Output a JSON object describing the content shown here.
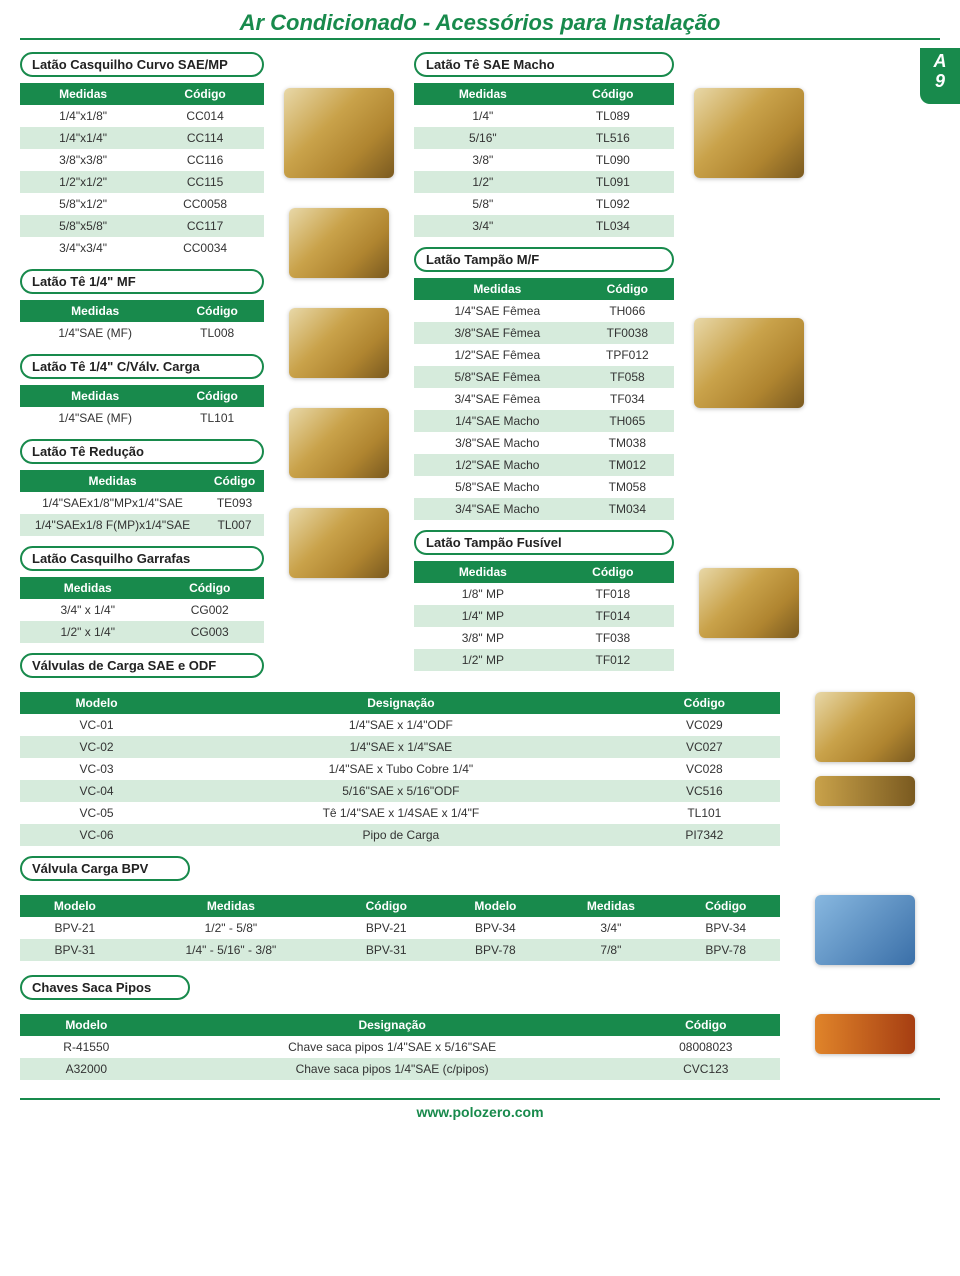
{
  "page": {
    "title": "Ar Condicionado - Acessórios para Instalação",
    "corner_top": "A",
    "corner_bottom": "9",
    "footer": "www.polozero.com"
  },
  "colors": {
    "brand": "#188a4c",
    "row_alt": "#d6ebdc",
    "text": "#333333",
    "bg": "#ffffff"
  },
  "headers": {
    "medidas": "Medidas",
    "codigo": "Código",
    "modelo": "Modelo",
    "designacao": "Designação"
  },
  "sections": {
    "casq_curvo": {
      "title": "Latão Casquilho Curvo SAE/MP",
      "rows": [
        [
          "1/4\"x1/8\"",
          "CC014"
        ],
        [
          "1/4\"x1/4\"",
          "CC114"
        ],
        [
          "3/8\"x3/8\"",
          "CC116"
        ],
        [
          "1/2\"x1/2\"",
          "CC115"
        ],
        [
          "5/8\"x1/2\"",
          "CC0058"
        ],
        [
          "5/8\"x5/8\"",
          "CC117"
        ],
        [
          "3/4\"x3/4\"",
          "CC0034"
        ]
      ]
    },
    "te_14_mf": {
      "title": "Latão Tê 1/4\" MF",
      "rows": [
        [
          "1/4\"SAE (MF)",
          "TL008"
        ]
      ]
    },
    "te_14_cvalv": {
      "title": "Latão Tê 1/4\" C/Válv. Carga",
      "rows": [
        [
          "1/4\"SAE (MF)",
          "TL101"
        ]
      ]
    },
    "te_reducao": {
      "title": "Latão Tê Redução",
      "rows": [
        [
          "1/4\"SAEx1/8\"MPx1/4\"SAE",
          "TE093"
        ],
        [
          "1/4\"SAEx1/8 F(MP)x1/4\"SAE",
          "TL007"
        ]
      ]
    },
    "casq_garrafas": {
      "title": "Latão Casquilho Garrafas",
      "rows": [
        [
          "3/4\" x 1/4\"",
          "CG002"
        ],
        [
          "1/2\" x 1/4\"",
          "CG003"
        ]
      ]
    },
    "te_sae_macho": {
      "title": "Latão Tê SAE Macho",
      "rows": [
        [
          "1/4\"",
          "TL089"
        ],
        [
          "5/16\"",
          "TL516"
        ],
        [
          "3/8\"",
          "TL090"
        ],
        [
          "1/2\"",
          "TL091"
        ],
        [
          "5/8\"",
          "TL092"
        ],
        [
          "3/4\"",
          "TL034"
        ]
      ]
    },
    "tampao_mf": {
      "title": "Latão Tampão M/F",
      "rows": [
        [
          "1/4\"SAE Fêmea",
          "TH066"
        ],
        [
          "3/8\"SAE Fêmea",
          "TF0038"
        ],
        [
          "1/2\"SAE Fêmea",
          "TPF012"
        ],
        [
          "5/8\"SAE Fêmea",
          "TF058"
        ],
        [
          "3/4\"SAE Fêmea",
          "TF034"
        ],
        [
          "1/4\"SAE Macho",
          "TH065"
        ],
        [
          "3/8\"SAE Macho",
          "TM038"
        ],
        [
          "1/2\"SAE Macho",
          "TM012"
        ],
        [
          "5/8\"SAE Macho",
          "TM058"
        ],
        [
          "3/4\"SAE Macho",
          "TM034"
        ]
      ]
    },
    "tampao_fusivel": {
      "title": "Latão Tampão Fusível",
      "rows": [
        [
          "1/8\" MP",
          "TF018"
        ],
        [
          "1/4\" MP",
          "TF014"
        ],
        [
          "3/8\" MP",
          "TF038"
        ],
        [
          "1/2\" MP",
          "TF012"
        ]
      ]
    },
    "valv_carga_sae_odf": {
      "title": "Válvulas de Carga SAE e ODF",
      "columns": [
        "Modelo",
        "Designação",
        "Código"
      ],
      "rows": [
        [
          "VC-01",
          "1/4\"SAE x 1/4\"ODF",
          "VC029"
        ],
        [
          "VC-02",
          "1/4\"SAE x 1/4\"SAE",
          "VC027"
        ],
        [
          "VC-03",
          "1/4\"SAE x Tubo Cobre 1/4\"",
          "VC028"
        ],
        [
          "VC-04",
          "5/16\"SAE x 5/16\"ODF",
          "VC516"
        ],
        [
          "VC-05",
          "Tê 1/4\"SAE x 1/4SAE x 1/4\"F",
          "TL101"
        ],
        [
          "VC-06",
          "Pipo de Carga",
          "PI7342"
        ]
      ]
    },
    "valv_carga_bpv": {
      "title": "Válvula Carga BPV",
      "columns": [
        "Modelo",
        "Medidas",
        "Código",
        "Modelo",
        "Medidas",
        "Código"
      ],
      "rows": [
        [
          "BPV-21",
          "1/2\" - 5/8\"",
          "BPV-21",
          "BPV-34",
          "3/4\"",
          "BPV-34"
        ],
        [
          "BPV-31",
          "1/4\" - 5/16\" - 3/8\"",
          "BPV-31",
          "BPV-78",
          "7/8\"",
          "BPV-78"
        ]
      ]
    },
    "chaves": {
      "title": "Chaves Saca Pipos",
      "columns": [
        "Modelo",
        "Designação",
        "Código"
      ],
      "rows": [
        [
          "R-41550",
          "Chave saca pipos 1/4\"SAE x 5/16\"SAE",
          "08008023"
        ],
        [
          "A32000",
          "Chave saca pipos 1/4\"SAE (c/pipos)",
          "CVC123"
        ]
      ]
    }
  }
}
